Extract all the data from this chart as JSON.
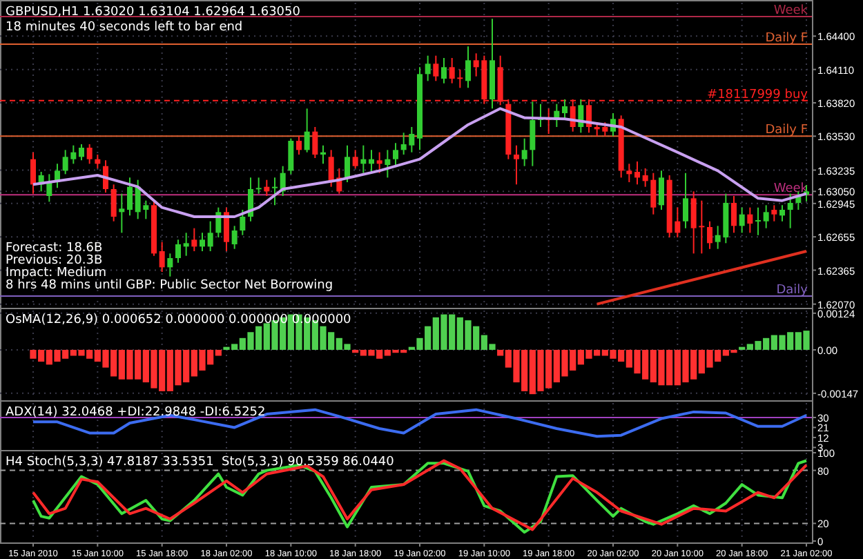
{
  "chart_data": [
    {
      "type": "candlestick",
      "title": "GBPUSD,H1 1.63020 1.63104 1.62964 1.63050",
      "tick_labels": "y",
      "grid": true,
      "annotations": [
        "18 minutes 40 seconds left to bar end",
        "Forecast: 18.6B",
        "Previous: 20.3B",
        "Impact: Medium",
        "8 hrs 48 mins until GBP: Public Sector Net Borrowing"
      ],
      "categories": [
        null,
        null,
        null,
        null,
        null,
        null,
        null,
        null,
        null,
        null,
        null,
        null,
        null,
        null,
        null,
        null,
        null,
        null,
        null,
        null,
        null,
        null,
        null,
        null,
        null,
        null,
        null,
        null,
        null,
        null,
        null,
        null,
        null,
        null,
        null,
        null,
        null,
        null,
        null,
        null,
        null,
        null,
        null,
        null,
        null,
        null,
        null,
        null,
        null,
        null,
        null,
        null,
        null,
        null,
        null,
        null,
        null,
        null,
        null,
        null,
        null,
        null,
        null,
        null,
        null,
        null,
        null,
        null,
        null,
        null,
        null,
        null,
        null,
        null,
        null,
        null,
        null,
        null,
        null,
        null,
        null,
        null,
        null,
        null,
        null,
        null,
        null,
        null,
        null,
        null,
        null,
        null,
        null,
        null,
        null,
        null,
        null
      ],
      "ohlc": [
        [
          1.6333,
          1.6339,
          1.6303,
          1.6311
        ],
        [
          1.6311,
          1.6322,
          1.6305,
          1.6319
        ],
        [
          1.6301,
          1.632,
          1.6296,
          1.6313
        ],
        [
          1.6313,
          1.6329,
          1.6308,
          1.6323
        ],
        [
          1.6323,
          1.6341,
          1.632,
          1.6335
        ],
        [
          1.6333,
          1.6345,
          1.6329,
          1.6339
        ],
        [
          1.6335,
          1.6346,
          1.6332,
          1.6343
        ],
        [
          1.6343,
          1.6346,
          1.6329,
          1.6333
        ],
        [
          1.6333,
          1.6337,
          1.6325,
          1.6329
        ],
        [
          1.6327,
          1.6332,
          1.6304,
          1.6307
        ],
        [
          1.6307,
          1.6311,
          1.6279,
          1.6283
        ],
        [
          1.6287,
          1.6303,
          1.6269,
          1.629
        ],
        [
          1.6289,
          1.6317,
          1.6284,
          1.6309
        ],
        [
          1.6287,
          1.6315,
          1.6281,
          1.6309
        ],
        [
          1.6289,
          1.6297,
          1.6281,
          1.6293
        ],
        [
          1.6293,
          1.6297,
          1.6249,
          1.6251
        ],
        [
          1.6253,
          1.6261,
          1.6235,
          1.6239
        ],
        [
          1.6239,
          1.6251,
          1.6231,
          1.6247
        ],
        [
          1.6247,
          1.6263,
          1.6243,
          1.6259
        ],
        [
          1.6257,
          1.6269,
          1.6249,
          1.626
        ],
        [
          1.6263,
          1.6273,
          1.6253,
          1.6257
        ],
        [
          1.6257,
          1.6269,
          1.6253,
          1.6263
        ],
        [
          1.6257,
          1.6279,
          1.6253,
          1.6269
        ],
        [
          1.6269,
          1.6291,
          1.6265,
          1.6287
        ],
        [
          1.6287,
          1.6291,
          1.6253,
          1.6261
        ],
        [
          1.6259,
          1.6275,
          1.6255,
          1.6271
        ],
        [
          1.6271,
          1.6289,
          1.6267,
          1.6283
        ],
        [
          1.6283,
          1.6317,
          1.6279,
          1.6307
        ],
        [
          1.6307,
          1.6317,
          1.6303,
          1.6308
        ],
        [
          1.6309,
          1.6315,
          1.6301,
          1.6305
        ],
        [
          1.6308,
          1.6317,
          1.6293,
          1.6309
        ],
        [
          1.6305,
          1.6327,
          1.6301,
          1.6321
        ],
        [
          1.6323,
          1.6351,
          1.632,
          1.6349
        ],
        [
          1.6349,
          1.6353,
          1.6337,
          1.6341
        ],
        [
          1.6341,
          1.6377,
          1.6339,
          1.6357
        ],
        [
          1.6357,
          1.6361,
          1.6334,
          1.6337
        ],
        [
          1.6337,
          1.6345,
          1.6329,
          1.6339
        ],
        [
          1.6335,
          1.6341,
          1.6309,
          1.6313
        ],
        [
          1.6317,
          1.6325,
          1.6303,
          1.6305
        ],
        [
          1.6317,
          1.6345,
          1.6313,
          1.6335
        ],
        [
          1.6335,
          1.6341,
          1.6325,
          1.6327
        ],
        [
          1.6329,
          1.6345,
          1.6321,
          1.6333
        ],
        [
          1.6329,
          1.6341,
          1.6322,
          1.6333
        ],
        [
          1.6332,
          1.6339,
          1.6321,
          1.6329
        ],
        [
          1.6328,
          1.6341,
          1.6317,
          1.6333
        ],
        [
          1.6333,
          1.6347,
          1.6327,
          1.6341
        ],
        [
          1.6341,
          1.6356,
          1.6337,
          1.6346
        ],
        [
          1.6345,
          1.6361,
          1.6339,
          1.6355
        ],
        [
          1.6351,
          1.6413,
          1.6341,
          1.6407
        ],
        [
          1.6407,
          1.6423,
          1.6401,
          1.6416
        ],
        [
          1.6416,
          1.6423,
          1.6401,
          1.6405
        ],
        [
          1.6403,
          1.6421,
          1.6399,
          1.6413
        ],
        [
          1.6413,
          1.6421,
          1.6399,
          1.6403
        ],
        [
          1.6404,
          1.6411,
          1.6395,
          1.6403
        ],
        [
          1.6401,
          1.6431,
          1.6395,
          1.6419
        ],
        [
          1.6419,
          1.6425,
          1.6405,
          1.6413
        ],
        [
          1.6419,
          1.6423,
          1.6381,
          1.6385
        ],
        [
          1.6385,
          1.6455,
          1.6377,
          1.6419
        ],
        [
          1.6413,
          1.6423,
          1.638,
          1.6383
        ],
        [
          1.6381,
          1.6385,
          1.6333,
          1.6337
        ],
        [
          1.6337,
          1.6345,
          1.6311,
          1.6333
        ],
        [
          1.6333,
          1.6351,
          1.6327,
          1.6341
        ],
        [
          1.6341,
          1.6383,
          1.6327,
          1.6367
        ],
        [
          1.6367,
          1.6381,
          1.6361,
          1.6369
        ],
        [
          1.6369,
          1.6377,
          1.6355,
          1.6367
        ],
        [
          1.6367,
          1.6381,
          1.6361,
          1.6375
        ],
        [
          1.6373,
          1.6385,
          1.6368,
          1.6379
        ],
        [
          1.6379,
          1.6385,
          1.6357,
          1.6361
        ],
        [
          1.6361,
          1.6385,
          1.6356,
          1.638
        ],
        [
          1.638,
          1.6385,
          1.6356,
          1.6361
        ],
        [
          1.6361,
          1.6365,
          1.6353,
          1.6359
        ],
        [
          1.6361,
          1.6365,
          1.6353,
          1.6357
        ],
        [
          1.6357,
          1.6373,
          1.6353,
          1.6368
        ],
        [
          1.6368,
          1.6371,
          1.6317,
          1.6323
        ],
        [
          1.6323,
          1.6329,
          1.6313,
          1.632
        ],
        [
          1.6322,
          1.6331,
          1.6311,
          1.6317
        ],
        [
          1.6319,
          1.6325,
          1.6309,
          1.6314
        ],
        [
          1.6315,
          1.6321,
          1.6285,
          1.6291
        ],
        [
          1.6293,
          1.6323,
          1.6289,
          1.6317
        ],
        [
          1.6315,
          1.6319,
          1.6265,
          1.6269
        ],
        [
          1.6279,
          1.6291,
          1.6265,
          1.6269
        ],
        [
          1.6279,
          1.6321,
          1.6273,
          1.6299
        ],
        [
          1.6299,
          1.6305,
          1.6251,
          1.6273
        ],
        [
          1.6275,
          1.6297,
          1.6251,
          1.6274
        ],
        [
          1.6274,
          1.6279,
          1.6255,
          1.626
        ],
        [
          1.6261,
          1.6275,
          1.6255,
          1.6267
        ],
        [
          1.6265,
          1.6303,
          1.626,
          1.6295
        ],
        [
          1.6295,
          1.6301,
          1.6269,
          1.6275
        ],
        [
          1.6275,
          1.6291,
          1.6269,
          1.6285
        ],
        [
          1.6285,
          1.6291,
          1.6269,
          1.6277
        ],
        [
          1.6279,
          1.6291,
          1.6267,
          1.628
        ],
        [
          1.6279,
          1.6293,
          1.6273,
          1.6287
        ],
        [
          1.6289,
          1.6293,
          1.6279,
          1.6285
        ],
        [
          1.6284,
          1.6293,
          1.6279,
          1.6289
        ],
        [
          1.6289,
          1.6303,
          1.6273,
          1.6295
        ],
        [
          1.6295,
          1.6305,
          1.6289,
          1.6301
        ],
        [
          1.6302,
          1.63104,
          1.62964,
          1.6305
        ]
      ],
      "series": [
        {
          "type": "line",
          "color": "#c8a0f0",
          "values": [
            1.6311,
            null,
            null,
            null,
            null,
            null,
            null,
            null,
            1.6319,
            null,
            null,
            null,
            null,
            1.6309,
            null,
            null,
            1.6291,
            null,
            null,
            null,
            1.6283,
            null,
            null,
            null,
            null,
            1.6283,
            null,
            null,
            1.6291,
            null,
            null,
            1.6307,
            null,
            null,
            null,
            null,
            null,
            null,
            1.6315,
            null,
            null,
            null,
            null,
            1.6323,
            null,
            null,
            null,
            null,
            1.6333,
            null,
            1.6343,
            null,
            null,
            null,
            1.6363,
            null,
            null,
            null,
            1.6377,
            null,
            null,
            1.6369,
            null,
            null,
            null,
            null,
            1.6368,
            null,
            null,
            null,
            null,
            null,
            null,
            1.6361,
            null,
            null,
            null,
            null,
            null,
            null,
            1.6339,
            null,
            null,
            null,
            null,
            1.6323,
            null,
            null,
            null,
            null,
            1.6299,
            null,
            null,
            1.6297,
            null,
            null,
            1.6303
          ]
        },
        {
          "type": "line",
          "color": "#e03020",
          "values": [
            null,
            null,
            null,
            null,
            null,
            null,
            null,
            null,
            null,
            null,
            null,
            null,
            null,
            null,
            null,
            null,
            null,
            null,
            null,
            null,
            null,
            null,
            null,
            null,
            null,
            null,
            null,
            null,
            null,
            null,
            null,
            null,
            null,
            null,
            null,
            null,
            null,
            null,
            null,
            null,
            null,
            null,
            null,
            null,
            null,
            null,
            null,
            null,
            null,
            null,
            null,
            null,
            null,
            null,
            null,
            null,
            null,
            null,
            null,
            null,
            null,
            null,
            null,
            null,
            null,
            null,
            null,
            null,
            null,
            null,
            1.6207,
            null,
            null,
            null,
            null,
            null,
            null,
            null,
            null,
            null,
            null,
            null,
            null,
            null,
            null,
            null,
            null,
            null,
            null,
            null,
            null,
            null,
            null,
            null,
            null,
            null,
            1.6253
          ]
        }
      ],
      "ylim": [
        1.6205,
        1.6469
      ],
      "yticks": [
        {
          "value": 1.644,
          "label": "1.64400"
        },
        {
          "value": 1.6411,
          "label": "1.64110"
        },
        {
          "value": 1.6382,
          "label": "1.63820"
        },
        {
          "value": 1.6353,
          "label": "1.63530"
        },
        {
          "value": 1.63235,
          "label": "1.63235"
        },
        {
          "value": 1.6305,
          "label": "1.63050"
        },
        {
          "value": 1.62945,
          "label": "1.62945"
        },
        {
          "value": 1.62655,
          "label": "1.62655"
        },
        {
          "value": 1.62365,
          "label": "1.62365"
        },
        {
          "value": 1.6207,
          "label": "1.62070"
        }
      ],
      "ref_lines": [
        {
          "axis": "y",
          "value": 1.6457,
          "label": "Week",
          "color": "#b02848"
        },
        {
          "axis": "y",
          "value": 1.6433,
          "label": "Daily F",
          "color": "#e06030"
        },
        {
          "axis": "y",
          "value": 1.6384,
          "label": "#18117999 buy",
          "color": "#ff2020",
          "line_style": "dashed"
        },
        {
          "axis": "y",
          "value": 1.6353,
          "label": "Daily F",
          "color": "#e06030"
        },
        {
          "axis": "y",
          "value": 1.6302,
          "label": "Week",
          "color": "#c03080"
        },
        {
          "axis": "y",
          "value": 1.6214,
          "label": "Daily",
          "color": "#8060c0"
        }
      ]
    },
    {
      "type": "bar",
      "title": "OsMA(12,26,9) 0.000652 0.000000 0.000000 0.000000",
      "tick_labels": "y",
      "grid": true,
      "categories": [
        null,
        null,
        null,
        null,
        null,
        null,
        null,
        null,
        null,
        null,
        null,
        null,
        null,
        null,
        null,
        null,
        null,
        null,
        null,
        null,
        null,
        null,
        null,
        null,
        null,
        null,
        null,
        null,
        null,
        null,
        null,
        null,
        null,
        null,
        null,
        null,
        null,
        null,
        null,
        null,
        null,
        null,
        null,
        null,
        null,
        null,
        null,
        null,
        null,
        null,
        null,
        null,
        null,
        null,
        null,
        null,
        null,
        null,
        null,
        null,
        null,
        null,
        null,
        null,
        null,
        null,
        null,
        null,
        null,
        null,
        null,
        null,
        null,
        null,
        null,
        null,
        null,
        null,
        null,
        null,
        null,
        null,
        null,
        null,
        null,
        null,
        null,
        null,
        null,
        null,
        null,
        null,
        null,
        null,
        null,
        null,
        null
      ],
      "values": [
        -0.0003,
        -0.0004,
        -0.0005,
        -0.0004,
        -0.0003,
        -0.0002,
        -0.0002,
        -0.0003,
        -0.0004,
        -0.0006,
        -0.0009,
        -0.001,
        -0.001,
        -0.001,
        -0.0011,
        -0.0013,
        -0.0014,
        -0.0014,
        -0.0012,
        -0.0011,
        -0.0009,
        -0.0007,
        -0.0005,
        -0.0002,
        0.0001,
        0.0002,
        0.0004,
        0.0006,
        0.0008,
        0.0009,
        0.001,
        0.0011,
        0.0012,
        0.0012,
        0.0011,
        0.001,
        0.0008,
        0.0006,
        0.0004,
        0.0002,
        -0.0001,
        -0.0002,
        -0.0002,
        -0.0003,
        -0.0002,
        -0.0001,
        -0.0001,
        0.0001,
        0.0004,
        0.0008,
        0.0011,
        0.0012,
        0.0012,
        0.0011,
        0.001,
        0.0008,
        0.0005,
        0.0002,
        -0.0002,
        -0.0006,
        -0.0011,
        -0.0014,
        -0.0015,
        -0.0014,
        -0.0013,
        -0.0011,
        -0.0009,
        -0.0007,
        -0.0005,
        -0.0003,
        -0.0002,
        -0.0002,
        -0.0003,
        -0.0004,
        -0.0006,
        -0.0008,
        -0.001,
        -0.0011,
        -0.0012,
        -0.0012,
        -0.0012,
        -0.0011,
        -0.001,
        -0.0008,
        -0.0006,
        -0.0004,
        -0.0002,
        -0.0001,
        0.0001,
        0.0002,
        0.0003,
        0.0004,
        0.0005,
        0.0005,
        0.0006,
        0.0006,
        0.00065
      ],
      "colors": [
        "#ff3030",
        "#ff3030",
        "#ff3030",
        "#ff3030",
        "#ff3030",
        "#ff3030",
        "#ff3030",
        "#ff3030",
        "#ff3030",
        "#ff3030",
        "#ff3030",
        "#ff3030",
        "#ff3030",
        "#ff3030",
        "#ff3030",
        "#ff3030",
        "#ff3030",
        "#ff3030",
        "#ff3030",
        "#ff3030",
        "#ff3030",
        "#ff3030",
        "#ff3030",
        "#ff3030",
        "#50d050",
        "#50d050",
        "#50d050",
        "#50d050",
        "#50d050",
        "#50d050",
        "#50d050",
        "#50d050",
        "#50d050",
        "#50d050",
        "#50d050",
        "#50d050",
        "#50d050",
        "#50d050",
        "#50d050",
        "#50d050",
        "#ff3030",
        "#ff3030",
        "#ff3030",
        "#ff3030",
        "#ff3030",
        "#ff3030",
        "#ff3030",
        "#50d050",
        "#50d050",
        "#50d050",
        "#50d050",
        "#50d050",
        "#50d050",
        "#50d050",
        "#50d050",
        "#50d050",
        "#50d050",
        "#50d050",
        "#ff3030",
        "#ff3030",
        "#ff3030",
        "#ff3030",
        "#ff3030",
        "#ff3030",
        "#ff3030",
        "#ff3030",
        "#ff3030",
        "#ff3030",
        "#ff3030",
        "#ff3030",
        "#ff3030",
        "#ff3030",
        "#ff3030",
        "#ff3030",
        "#ff3030",
        "#ff3030",
        "#ff3030",
        "#ff3030",
        "#ff3030",
        "#ff3030",
        "#ff3030",
        "#ff3030",
        "#ff3030",
        "#ff3030",
        "#ff3030",
        "#ff3030",
        "#ff3030",
        "#ff3030",
        "#50d050",
        "#50d050",
        "#50d050",
        "#50d050",
        "#50d050",
        "#50d050",
        "#50d050",
        "#50d050",
        "#50d050"
      ],
      "ylim": [
        -0.00166,
        0.00133
      ],
      "yticks": [
        {
          "value": 0.00124,
          "label": "0.00124"
        },
        {
          "value": 0,
          "label": "0.00"
        },
        {
          "value": -0.00147,
          "label": "-0.00147"
        }
      ]
    },
    {
      "type": "line",
      "title": "ADX(14) 32.0468 +DI:22.9848 -DI:6.5252",
      "tick_labels": "y",
      "grid": "x",
      "categories": [
        null,
        null,
        null,
        null,
        null,
        null,
        null,
        null,
        null,
        null,
        null,
        null,
        null,
        null,
        null,
        null,
        null,
        null,
        null,
        null,
        null,
        null,
        null,
        null,
        null,
        null,
        null,
        null,
        null,
        null,
        null,
        null,
        null,
        null,
        null,
        null,
        null,
        null,
        null,
        null,
        null,
        null,
        null,
        null,
        null,
        null,
        null,
        null,
        null,
        null,
        null,
        null,
        null,
        null,
        null,
        null,
        null,
        null,
        null,
        null,
        null,
        null,
        null,
        null,
        null,
        null,
        null,
        null,
        null,
        null,
        null,
        null,
        null,
        null,
        null,
        null,
        null,
        null,
        null,
        null,
        null,
        null,
        null,
        null,
        null,
        null,
        null,
        null,
        null,
        null,
        null,
        null,
        null,
        null,
        null,
        null,
        null
      ],
      "series": [
        {
          "color": "#3c6cf0",
          "values": [
            26,
            null,
            null,
            26,
            null,
            null,
            null,
            16,
            null,
            null,
            16,
            null,
            25,
            null,
            null,
            null,
            null,
            32,
            null,
            null,
            28,
            null,
            null,
            null,
            null,
            21,
            null,
            null,
            null,
            33,
            null,
            null,
            null,
            null,
            null,
            37,
            null,
            null,
            31,
            null,
            null,
            null,
            null,
            20,
            null,
            null,
            16,
            null,
            null,
            null,
            33,
            null,
            null,
            null,
            null,
            37,
            null,
            null,
            null,
            null,
            29,
            null,
            null,
            null,
            null,
            20,
            null,
            null,
            null,
            null,
            13,
            null,
            null,
            14,
            null,
            null,
            null,
            null,
            29,
            null,
            null,
            null,
            35,
            null,
            null,
            null,
            34,
            null,
            null,
            null,
            22,
            null,
            null,
            22,
            null,
            null,
            32
          ]
        }
      ],
      "ylim": [
        2,
        43
      ],
      "yticks": [
        30,
        21,
        12,
        3
      ],
      "ref_lines": [
        {
          "axis": "y",
          "value": 30,
          "color": "#a040c0"
        }
      ]
    },
    {
      "type": "line",
      "title": "H4 Stoch(5,3,3) 47.8187 33.5351  Sto(5,3,3) 90.5359 86.0440",
      "grid": "x",
      "categories": [
        "15 Jan 2010",
        null,
        null,
        null,
        null,
        null,
        null,
        null,
        "15 Jan 10:00",
        null,
        null,
        null,
        null,
        null,
        null,
        null,
        "15 Jan 18:00",
        null,
        null,
        null,
        null,
        null,
        null,
        null,
        "18 Jan 02:00",
        null,
        null,
        null,
        null,
        null,
        null,
        null,
        "18 Jan 10:00",
        null,
        null,
        null,
        null,
        null,
        null,
        null,
        "18 Jan 18:00",
        null,
        null,
        null,
        null,
        null,
        null,
        null,
        "19 Jan 02:00",
        null,
        null,
        null,
        null,
        null,
        null,
        null,
        "19 Jan 10:00",
        null,
        null,
        null,
        null,
        null,
        null,
        null,
        "19 Jan 18:00",
        null,
        null,
        null,
        null,
        null,
        null,
        null,
        "20 Jan 02:00",
        null,
        null,
        null,
        null,
        null,
        null,
        null,
        "20 Jan 10:00",
        null,
        null,
        null,
        null,
        null,
        null,
        null,
        "20 Jan 18:00",
        null,
        null,
        null,
        null,
        null,
        null,
        null,
        "21 Jan 02:00"
      ],
      "series": [
        {
          "color": "#40e040",
          "values": [
            46,
            28,
            26,
            null,
            null,
            null,
            73,
            null,
            64,
            null,
            null,
            31,
            null,
            null,
            46,
            null,
            25,
            23,
            null,
            null,
            46,
            null,
            null,
            76,
            61,
            null,
            52,
            null,
            76,
            80,
            null,
            null,
            null,
            86,
            null,
            79,
            null,
            49,
            null,
            16,
            31,
            null,
            61,
            null,
            null,
            null,
            64,
            null,
            null,
            88,
            null,
            88,
            null,
            null,
            79,
            null,
            40,
            null,
            34,
            null,
            null,
            10,
            null,
            22,
            null,
            73,
            null,
            74,
            null,
            null,
            46,
            null,
            28,
            37,
            null,
            null,
            22,
            19,
            null,
            null,
            31,
            null,
            40,
            null,
            31,
            null,
            43,
            null,
            64,
            null,
            52,
            null,
            null,
            49,
            null,
            88,
            91
          ]
        },
        {
          "color": "#ff2a2a",
          "values": [
            55,
            null,
            31,
            null,
            37,
            null,
            70,
            null,
            67,
            null,
            null,
            null,
            31,
            null,
            37,
            null,
            null,
            25,
            null,
            null,
            43,
            null,
            null,
            null,
            68,
            null,
            55,
            null,
            null,
            76,
            null,
            null,
            null,
            null,
            85,
            null,
            73,
            null,
            null,
            25,
            null,
            null,
            58,
            null,
            null,
            null,
            64,
            null,
            null,
            null,
            null,
            91,
            null,
            82,
            null,
            null,
            null,
            37,
            null,
            null,
            null,
            null,
            13,
            null,
            null,
            null,
            null,
            71,
            null,
            null,
            55,
            null,
            null,
            34,
            null,
            null,
            null,
            null,
            19,
            null,
            null,
            null,
            37,
            null,
            null,
            null,
            34,
            null,
            null,
            null,
            55,
            null,
            49,
            null,
            null,
            null,
            86
          ]
        }
      ],
      "ylim": [
        0,
        100
      ],
      "yticks": [
        100,
        80,
        20,
        0
      ],
      "ref_lines": [
        {
          "axis": "y",
          "value": 80,
          "color": "#a0a0a0",
          "line_style": "dashed"
        },
        {
          "axis": "y",
          "value": 20,
          "color": "#a0a0a0",
          "line_style": "dashed"
        }
      ]
    }
  ]
}
